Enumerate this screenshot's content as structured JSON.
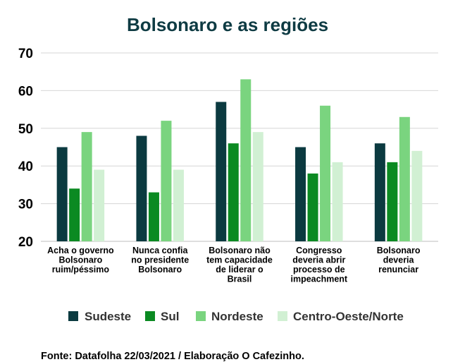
{
  "chart_data": {
    "type": "bar",
    "title": "Bolsonaro e as regiões",
    "categories": [
      [
        "Acha o governo",
        "Bolsonaro",
        "ruim/péssimo"
      ],
      [
        "Nunca confia",
        "no presidente",
        "Bolsonaro"
      ],
      [
        "Bolsonaro não",
        "tem capacidade",
        "de liderar o",
        "Brasil"
      ],
      [
        "Congresso",
        "deveria abrir",
        "processo de",
        "impeachment"
      ],
      [
        "Bolsonaro",
        "deveria",
        "renunciar"
      ]
    ],
    "series": [
      {
        "name": "Sudeste",
        "color": "#0b3a40",
        "values": [
          45,
          48,
          57,
          45,
          46
        ]
      },
      {
        "name": "Sul",
        "color": "#0b8a22",
        "values": [
          34,
          33,
          46,
          38,
          41
        ]
      },
      {
        "name": "Nordeste",
        "color": "#7ad47f",
        "values": [
          49,
          52,
          63,
          56,
          53
        ]
      },
      {
        "name": "Centro-Oeste/Norte",
        "color": "#d1f0d3",
        "values": [
          39,
          39,
          49,
          41,
          44
        ]
      }
    ],
    "ylim": [
      20,
      70
    ],
    "yticks": [
      20,
      30,
      40,
      50,
      60,
      70
    ],
    "grid": true,
    "legend_position": "bottom"
  },
  "source": "Fonte: Datafolha 22/03/2021 / Elaboração O Cafezinho."
}
